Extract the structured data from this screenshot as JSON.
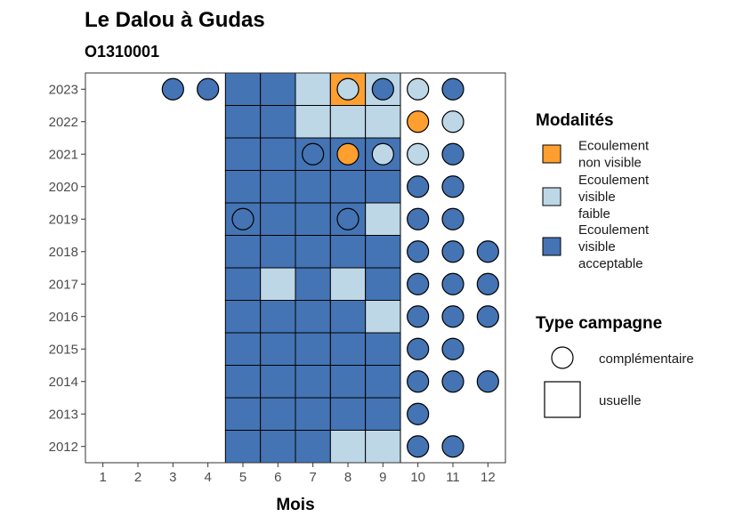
{
  "chart_data": {
    "type": "heatmap",
    "title": "Le Dalou à Gudas",
    "subtitle": "O1310001",
    "xlabel": "Mois",
    "ylabel": "",
    "x_ticks": [
      "1",
      "2",
      "3",
      "4",
      "5",
      "6",
      "7",
      "8",
      "9",
      "10",
      "11",
      "12"
    ],
    "y_ticks": [
      "2012",
      "2013",
      "2014",
      "2015",
      "2016",
      "2017",
      "2018",
      "2019",
      "2020",
      "2021",
      "2022",
      "2023"
    ],
    "xlim": [
      0.5,
      12.5
    ],
    "ylim": [
      2011.5,
      2023.5
    ],
    "colors": {
      "Ecoulement non visible": "#fe9f2f",
      "Ecoulement visible faible": "#bdd7e7",
      "Ecoulement visible acceptable": "#4474b4"
    },
    "legend_modalites": {
      "title": "Modalités",
      "items": [
        {
          "key": "Ecoulement non visible",
          "lines": [
            "Ecoulement",
            "non visible"
          ]
        },
        {
          "key": "Ecoulement visible faible",
          "lines": [
            "Ecoulement",
            "visible",
            "faible"
          ]
        },
        {
          "key": "Ecoulement visible acceptable",
          "lines": [
            "Ecoulement",
            "visible",
            "acceptable"
          ]
        }
      ]
    },
    "legend_campagne": {
      "title": "Type campagne",
      "items": [
        {
          "shape": "circle",
          "label": "complémentaire"
        },
        {
          "shape": "square",
          "label": "usuelle"
        }
      ]
    },
    "usuelle": [
      {
        "year": 2023,
        "month": 5,
        "value": "Ecoulement visible acceptable"
      },
      {
        "year": 2023,
        "month": 6,
        "value": "Ecoulement visible acceptable"
      },
      {
        "year": 2023,
        "month": 7,
        "value": "Ecoulement visible faible"
      },
      {
        "year": 2023,
        "month": 8,
        "value": "Ecoulement non visible"
      },
      {
        "year": 2023,
        "month": 9,
        "value": "Ecoulement visible faible"
      },
      {
        "year": 2022,
        "month": 5,
        "value": "Ecoulement visible acceptable"
      },
      {
        "year": 2022,
        "month": 6,
        "value": "Ecoulement visible acceptable"
      },
      {
        "year": 2022,
        "month": 7,
        "value": "Ecoulement visible faible"
      },
      {
        "year": 2022,
        "month": 8,
        "value": "Ecoulement visible faible"
      },
      {
        "year": 2022,
        "month": 9,
        "value": "Ecoulement visible faible"
      },
      {
        "year": 2021,
        "month": 5,
        "value": "Ecoulement visible acceptable"
      },
      {
        "year": 2021,
        "month": 6,
        "value": "Ecoulement visible acceptable"
      },
      {
        "year": 2021,
        "month": 7,
        "value": "Ecoulement visible acceptable"
      },
      {
        "year": 2021,
        "month": 8,
        "value": "Ecoulement visible acceptable"
      },
      {
        "year": 2021,
        "month": 9,
        "value": "Ecoulement visible acceptable"
      },
      {
        "year": 2020,
        "month": 5,
        "value": "Ecoulement visible acceptable"
      },
      {
        "year": 2020,
        "month": 6,
        "value": "Ecoulement visible acceptable"
      },
      {
        "year": 2020,
        "month": 7,
        "value": "Ecoulement visible acceptable"
      },
      {
        "year": 2020,
        "month": 8,
        "value": "Ecoulement visible acceptable"
      },
      {
        "year": 2020,
        "month": 9,
        "value": "Ecoulement visible acceptable"
      },
      {
        "year": 2019,
        "month": 5,
        "value": "Ecoulement visible acceptable"
      },
      {
        "year": 2019,
        "month": 6,
        "value": "Ecoulement visible acceptable"
      },
      {
        "year": 2019,
        "month": 7,
        "value": "Ecoulement visible acceptable"
      },
      {
        "year": 2019,
        "month": 8,
        "value": "Ecoulement visible acceptable"
      },
      {
        "year": 2019,
        "month": 9,
        "value": "Ecoulement visible faible"
      },
      {
        "year": 2018,
        "month": 5,
        "value": "Ecoulement visible acceptable"
      },
      {
        "year": 2018,
        "month": 6,
        "value": "Ecoulement visible acceptable"
      },
      {
        "year": 2018,
        "month": 7,
        "value": "Ecoulement visible acceptable"
      },
      {
        "year": 2018,
        "month": 8,
        "value": "Ecoulement visible acceptable"
      },
      {
        "year": 2018,
        "month": 9,
        "value": "Ecoulement visible acceptable"
      },
      {
        "year": 2017,
        "month": 5,
        "value": "Ecoulement visible acceptable"
      },
      {
        "year": 2017,
        "month": 6,
        "value": "Ecoulement visible faible"
      },
      {
        "year": 2017,
        "month": 7,
        "value": "Ecoulement visible acceptable"
      },
      {
        "year": 2017,
        "month": 8,
        "value": "Ecoulement visible faible"
      },
      {
        "year": 2017,
        "month": 9,
        "value": "Ecoulement visible acceptable"
      },
      {
        "year": 2016,
        "month": 5,
        "value": "Ecoulement visible acceptable"
      },
      {
        "year": 2016,
        "month": 6,
        "value": "Ecoulement visible acceptable"
      },
      {
        "year": 2016,
        "month": 7,
        "value": "Ecoulement visible acceptable"
      },
      {
        "year": 2016,
        "month": 8,
        "value": "Ecoulement visible acceptable"
      },
      {
        "year": 2016,
        "month": 9,
        "value": "Ecoulement visible faible"
      },
      {
        "year": 2015,
        "month": 5,
        "value": "Ecoulement visible acceptable"
      },
      {
        "year": 2015,
        "month": 6,
        "value": "Ecoulement visible acceptable"
      },
      {
        "year": 2015,
        "month": 7,
        "value": "Ecoulement visible acceptable"
      },
      {
        "year": 2015,
        "month": 8,
        "value": "Ecoulement visible acceptable"
      },
      {
        "year": 2015,
        "month": 9,
        "value": "Ecoulement visible acceptable"
      },
      {
        "year": 2014,
        "month": 5,
        "value": "Ecoulement visible acceptable"
      },
      {
        "year": 2014,
        "month": 6,
        "value": "Ecoulement visible acceptable"
      },
      {
        "year": 2014,
        "month": 7,
        "value": "Ecoulement visible acceptable"
      },
      {
        "year": 2014,
        "month": 8,
        "value": "Ecoulement visible acceptable"
      },
      {
        "year": 2014,
        "month": 9,
        "value": "Ecoulement visible acceptable"
      },
      {
        "year": 2013,
        "month": 5,
        "value": "Ecoulement visible acceptable"
      },
      {
        "year": 2013,
        "month": 6,
        "value": "Ecoulement visible acceptable"
      },
      {
        "year": 2013,
        "month": 7,
        "value": "Ecoulement visible acceptable"
      },
      {
        "year": 2013,
        "month": 8,
        "value": "Ecoulement visible acceptable"
      },
      {
        "year": 2013,
        "month": 9,
        "value": "Ecoulement visible acceptable"
      },
      {
        "year": 2012,
        "month": 5,
        "value": "Ecoulement visible acceptable"
      },
      {
        "year": 2012,
        "month": 6,
        "value": "Ecoulement visible acceptable"
      },
      {
        "year": 2012,
        "month": 7,
        "value": "Ecoulement visible acceptable"
      },
      {
        "year": 2012,
        "month": 8,
        "value": "Ecoulement visible faible"
      },
      {
        "year": 2012,
        "month": 9,
        "value": "Ecoulement visible faible"
      }
    ],
    "complementaire": [
      {
        "year": 2023,
        "month": 3,
        "value": "Ecoulement visible acceptable"
      },
      {
        "year": 2023,
        "month": 4,
        "value": "Ecoulement visible acceptable"
      },
      {
        "year": 2023,
        "month": 8,
        "value": "Ecoulement visible faible"
      },
      {
        "year": 2023,
        "month": 9,
        "value": "Ecoulement visible acceptable"
      },
      {
        "year": 2023,
        "month": 10,
        "value": "Ecoulement visible faible"
      },
      {
        "year": 2023,
        "month": 11,
        "value": "Ecoulement visible acceptable"
      },
      {
        "year": 2022,
        "month": 10,
        "value": "Ecoulement non visible"
      },
      {
        "year": 2022,
        "month": 11,
        "value": "Ecoulement visible faible"
      },
      {
        "year": 2021,
        "month": 7,
        "value": "Ecoulement visible acceptable"
      },
      {
        "year": 2021,
        "month": 8,
        "value": "Ecoulement non visible"
      },
      {
        "year": 2021,
        "month": 9,
        "value": "Ecoulement visible faible"
      },
      {
        "year": 2021,
        "month": 10,
        "value": "Ecoulement visible faible"
      },
      {
        "year": 2021,
        "month": 11,
        "value": "Ecoulement visible acceptable"
      },
      {
        "year": 2020,
        "month": 10,
        "value": "Ecoulement visible acceptable"
      },
      {
        "year": 2020,
        "month": 11,
        "value": "Ecoulement visible acceptable"
      },
      {
        "year": 2019,
        "month": 5,
        "value": "Ecoulement visible acceptable"
      },
      {
        "year": 2019,
        "month": 8,
        "value": "Ecoulement visible acceptable"
      },
      {
        "year": 2019,
        "month": 10,
        "value": "Ecoulement visible acceptable"
      },
      {
        "year": 2019,
        "month": 11,
        "value": "Ecoulement visible acceptable"
      },
      {
        "year": 2018,
        "month": 10,
        "value": "Ecoulement visible acceptable"
      },
      {
        "year": 2018,
        "month": 11,
        "value": "Ecoulement visible acceptable"
      },
      {
        "year": 2018,
        "month": 12,
        "value": "Ecoulement visible acceptable"
      },
      {
        "year": 2017,
        "month": 10,
        "value": "Ecoulement visible acceptable"
      },
      {
        "year": 2017,
        "month": 11,
        "value": "Ecoulement visible acceptable"
      },
      {
        "year": 2017,
        "month": 12,
        "value": "Ecoulement visible acceptable"
      },
      {
        "year": 2016,
        "month": 10,
        "value": "Ecoulement visible acceptable"
      },
      {
        "year": 2016,
        "month": 11,
        "value": "Ecoulement visible acceptable"
      },
      {
        "year": 2016,
        "month": 12,
        "value": "Ecoulement visible acceptable"
      },
      {
        "year": 2015,
        "month": 10,
        "value": "Ecoulement visible acceptable"
      },
      {
        "year": 2015,
        "month": 11,
        "value": "Ecoulement visible acceptable"
      },
      {
        "year": 2014,
        "month": 10,
        "value": "Ecoulement visible acceptable"
      },
      {
        "year": 2014,
        "month": 11,
        "value": "Ecoulement visible acceptable"
      },
      {
        "year": 2014,
        "month": 12,
        "value": "Ecoulement visible acceptable"
      },
      {
        "year": 2013,
        "month": 10,
        "value": "Ecoulement visible acceptable"
      },
      {
        "year": 2012,
        "month": 10,
        "value": "Ecoulement visible acceptable"
      },
      {
        "year": 2012,
        "month": 11,
        "value": "Ecoulement visible acceptable"
      }
    ]
  }
}
